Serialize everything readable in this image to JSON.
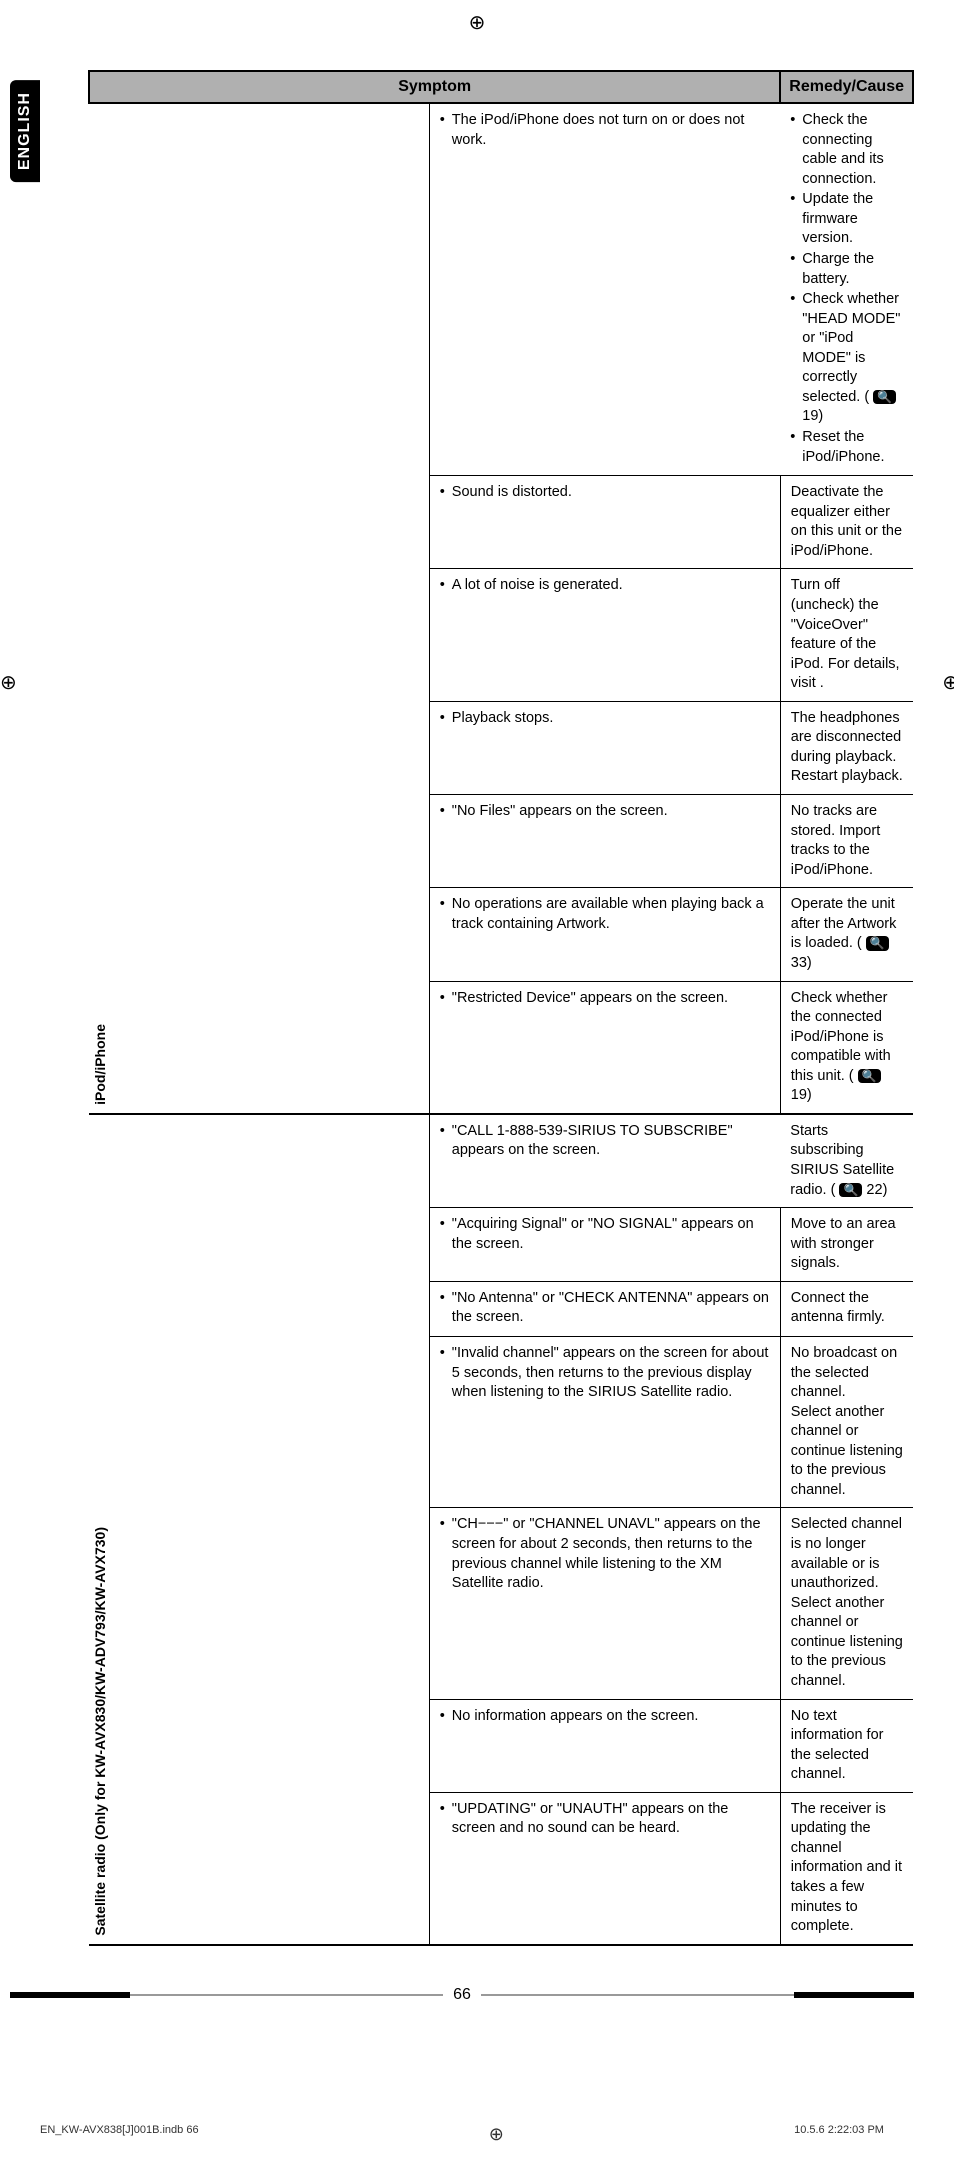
{
  "lang_tab": "ENGLISH",
  "crop_glyph": "⊕",
  "table": {
    "headers": [
      "Symptom",
      "Remedy/Cause"
    ],
    "sections": [
      {
        "label": "iPod/iPhone",
        "rows": [
          {
            "symptom_items": [
              "The iPod/iPhone does not turn on or does not work."
            ],
            "remedy_items": [
              "Check the connecting cable and its connection.",
              "Update the firmware version.",
              "Charge the battery.",
              "Check whether \"HEAD MODE\" or \"iPod MODE\" is correctly selected. ( 🔍 19)",
              "Reset the iPod/iPhone."
            ]
          },
          {
            "symptom_items": [
              "Sound is distorted."
            ],
            "remedy_plain": "Deactivate the equalizer either on this unit or the iPod/iPhone."
          },
          {
            "symptom_items": [
              "A lot of noise is generated."
            ],
            "remedy_plain": "Turn off (uncheck) the \"VoiceOver\" feature of the iPod. For details, visit <http://www.apple.com>."
          },
          {
            "symptom_items": [
              "Playback stops."
            ],
            "remedy_plain": "The headphones are disconnected during playback. Restart playback."
          },
          {
            "symptom_items": [
              "\"No Files\" appears on the screen."
            ],
            "remedy_plain": "No tracks are stored. Import tracks to the iPod/iPhone."
          },
          {
            "symptom_items": [
              "No operations are available when playing back a track containing Artwork."
            ],
            "remedy_plain": "Operate the unit after the Artwork is loaded. ( 🔍 33)"
          },
          {
            "symptom_items": [
              "\"Restricted Device\" appears on the screen."
            ],
            "remedy_plain": "Check whether the connected iPod/iPhone is compatible with this unit. ( 🔍 19)"
          }
        ]
      },
      {
        "label": "Satellite radio (Only for KW-AVX830/KW-ADV793/KW-AVX730)",
        "rows": [
          {
            "symptom_items": [
              "\"CALL 1-888-539-SIRIUS TO SUBSCRIBE\" appears on the screen."
            ],
            "remedy_plain": "Starts subscribing SIRIUS Satellite radio. ( 🔍 22)"
          },
          {
            "symptom_items": [
              "\"Acquiring Signal\" or \"NO SIGNAL\" appears on the screen."
            ],
            "remedy_plain": "Move to an area with stronger signals."
          },
          {
            "symptom_items": [
              "\"No Antenna\" or \"CHECK ANTENNA\" appears on the screen."
            ],
            "remedy_plain": "Connect the antenna firmly."
          },
          {
            "symptom_items": [
              "\"Invalid channel\" appears on the screen for about 5 seconds, then returns to the previous display when listening to the SIRIUS Satellite radio."
            ],
            "remedy_plain": "No broadcast on the selected channel.\nSelect another channel or continue listening to the previous channel."
          },
          {
            "symptom_items": [
              "\"CH−−−\" or \"CHANNEL UNAVL\" appears on the screen for about 2 seconds, then returns to the previous channel while listening to the XM Satellite radio."
            ],
            "remedy_plain": "Selected channel is no longer available or is unauthorized. Select another channel or continue listening to the previous channel."
          },
          {
            "symptom_items": [
              "No information appears on the screen."
            ],
            "remedy_plain": "No text information for the selected channel."
          },
          {
            "symptom_items": [
              "\"UPDATING\" or \"UNAUTH\" appears on the screen and no sound can be heard."
            ],
            "remedy_plain": "The receiver is updating the channel information and it takes a few minutes to complete."
          }
        ]
      }
    ]
  },
  "page_number": "66",
  "footer": {
    "left": "EN_KW-AVX838[J]001B.indb   66",
    "right": "10.5.6   2:22:03 PM"
  }
}
